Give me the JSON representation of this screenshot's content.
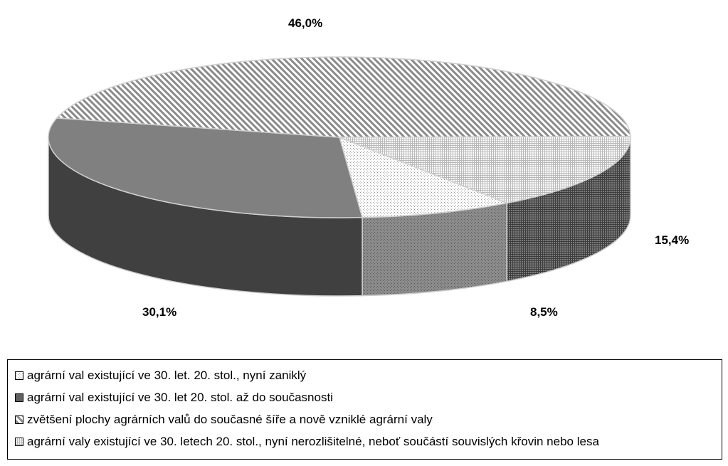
{
  "chart_data": {
    "type": "pie",
    "style": "3d",
    "slices": [
      {
        "label": "agrární val existující ve 30. let. 20. stol., nyní zaniklý",
        "value": 8.5,
        "value_label": "8,5%",
        "fill": "light-dotted",
        "color": "#f2f2f2"
      },
      {
        "label": "agrární val existující ve 30. let 20. stol. až do současnosti",
        "value": 30.1,
        "value_label": "30,1%",
        "fill": "solid-gray",
        "color": "#808080"
      },
      {
        "label": "zvětšení plochy agrárních valů do současné šíře a nově vzniklé agrární valy",
        "value": 46.0,
        "value_label": "46,0%",
        "fill": "diagonal-hatch",
        "color": "#b0b0b0"
      },
      {
        "label": "agrární valy existující ve 30. letech 20. stol., nyní nerozlišitelné, neboť součástí souvislých křovin nebo lesa",
        "value": 15.4,
        "value_label": "15,4%",
        "fill": "crosshatch",
        "color": "#dcdcdc"
      }
    ],
    "legend_position": "bottom"
  }
}
